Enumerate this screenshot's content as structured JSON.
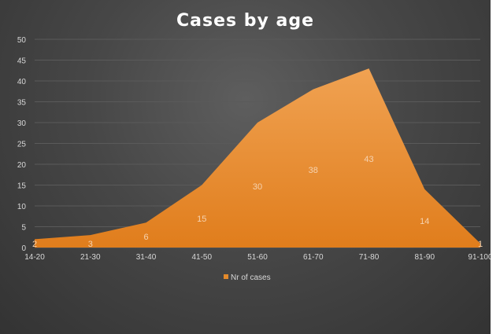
{
  "chart_data": {
    "type": "area",
    "title": "Cases by age",
    "categories": [
      "14-20",
      "21-30",
      "31-40",
      "41-50",
      "51-60",
      "61-70",
      "71-80",
      "81-90",
      "91-100"
    ],
    "series": [
      {
        "name": "Nr of cases",
        "values": [
          2,
          3,
          6,
          15,
          30,
          38,
          43,
          14,
          1
        ]
      }
    ],
    "ylim": [
      0,
      50
    ],
    "yticks": [
      0,
      5,
      10,
      15,
      20,
      25,
      30,
      35,
      40,
      45,
      50
    ],
    "grid": true,
    "legend_position": "bottom",
    "colors": {
      "area": "#e38a2b",
      "area_light": "#f0a252",
      "background": "#454545",
      "text": "#d8d8d8"
    }
  }
}
